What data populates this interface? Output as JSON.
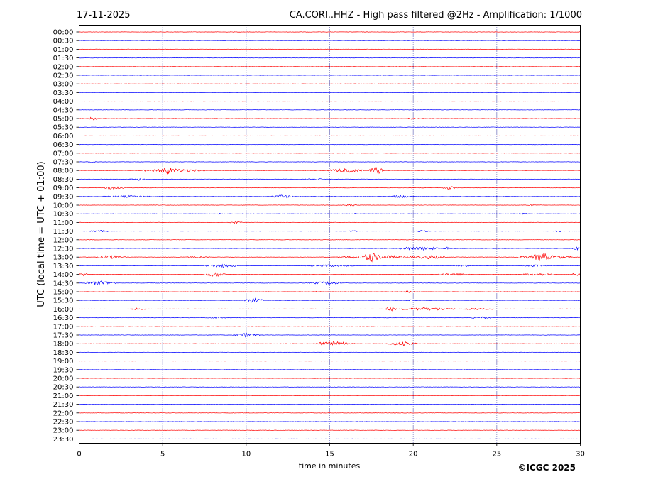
{
  "chart_data": {
    "type": "line",
    "date": "17-11-2025",
    "title": "CA.CORI..HHZ - High pass filtered @2Hz - Amplification: 1/1000",
    "xlabel": "time in minutes",
    "ylabel": "UTC (local time = UTC + 01:00)",
    "copyright": "©ICGC 2025",
    "xlim": [
      0,
      30
    ],
    "x_ticks": [
      0,
      5,
      10,
      15,
      20,
      25,
      30
    ],
    "x_tick_labels": [
      "0",
      "5",
      "10",
      "15",
      "20",
      "25",
      "30"
    ],
    "vertical_gridlines_at": [
      5,
      10,
      15,
      20,
      25
    ],
    "trace_colors": [
      "#ff0000",
      "#0000ff"
    ],
    "row_labels": [
      "00:00",
      "00:30",
      "01:00",
      "01:30",
      "02:00",
      "02:30",
      "03:00",
      "03:30",
      "04:00",
      "04:30",
      "05:00",
      "05:30",
      "06:00",
      "06:30",
      "07:00",
      "07:30",
      "08:00",
      "08:30",
      "09:00",
      "09:30",
      "10:00",
      "10:30",
      "11:00",
      "11:30",
      "12:00",
      "12:30",
      "13:00",
      "13:30",
      "14:00",
      "14:30",
      "15:00",
      "15:30",
      "16:00",
      "16:30",
      "17:00",
      "17:30",
      "18:00",
      "18:30",
      "19:00",
      "19:30",
      "20:00",
      "20:30",
      "21:00",
      "21:30",
      "22:00",
      "22:30",
      "23:00",
      "23:30"
    ],
    "events": [
      {
        "row": "05:00",
        "start": 0.6,
        "end": 1.1,
        "amplitude": 3
      },
      {
        "row": "05:00",
        "start": 19.6,
        "end": 20.3,
        "amplitude": 1.2
      },
      {
        "row": "07:30",
        "start": 0.5,
        "end": 1.0,
        "amplitude": 1
      },
      {
        "row": "08:00",
        "start": 3.8,
        "end": 7.5,
        "amplitude": 2.5
      },
      {
        "row": "08:00",
        "start": 4.9,
        "end": 5.6,
        "amplitude": 6
      },
      {
        "row": "08:00",
        "start": 14.9,
        "end": 17.0,
        "amplitude": 3
      },
      {
        "row": "08:00",
        "start": 17.4,
        "end": 18.2,
        "amplitude": 6
      },
      {
        "row": "08:30",
        "start": 3.0,
        "end": 4.0,
        "amplitude": 2
      },
      {
        "row": "08:30",
        "start": 13.5,
        "end": 14.7,
        "amplitude": 1.2
      },
      {
        "row": "09:00",
        "start": 1.5,
        "end": 2.8,
        "amplitude": 2.5
      },
      {
        "row": "09:00",
        "start": 21.8,
        "end": 22.6,
        "amplitude": 2.5
      },
      {
        "row": "09:30",
        "start": 1.4,
        "end": 4.5,
        "amplitude": 1.5
      },
      {
        "row": "09:30",
        "start": 11.5,
        "end": 12.8,
        "amplitude": 2.5
      },
      {
        "row": "09:30",
        "start": 18.5,
        "end": 19.9,
        "amplitude": 2
      },
      {
        "row": "10:00",
        "start": 16.0,
        "end": 16.6,
        "amplitude": 2
      },
      {
        "row": "10:00",
        "start": 26.7,
        "end": 27.3,
        "amplitude": 1.5
      },
      {
        "row": "10:30",
        "start": 8.0,
        "end": 9.0,
        "amplitude": 1
      },
      {
        "row": "10:30",
        "start": 16.0,
        "end": 16.8,
        "amplitude": 1
      },
      {
        "row": "10:30",
        "start": 26.3,
        "end": 26.9,
        "amplitude": 1.5
      },
      {
        "row": "11:00",
        "start": 9.0,
        "end": 9.8,
        "amplitude": 1.5
      },
      {
        "row": "11:30",
        "start": 0.6,
        "end": 2.0,
        "amplitude": 1.3
      },
      {
        "row": "11:30",
        "start": 16.1,
        "end": 16.7,
        "amplitude": 1.3
      },
      {
        "row": "11:30",
        "start": 20.1,
        "end": 21.0,
        "amplitude": 1.3
      },
      {
        "row": "11:30",
        "start": 28.3,
        "end": 29.0,
        "amplitude": 1.3
      },
      {
        "row": "12:30",
        "start": 19.2,
        "end": 21.5,
        "amplitude": 3
      },
      {
        "row": "12:30",
        "start": 21.8,
        "end": 22.3,
        "amplitude": 2
      },
      {
        "row": "12:30",
        "start": 29.5,
        "end": 30.0,
        "amplitude": 3
      },
      {
        "row": "13:00",
        "start": 1.0,
        "end": 2.8,
        "amplitude": 2.5
      },
      {
        "row": "13:00",
        "start": 6.5,
        "end": 7.8,
        "amplitude": 1.5
      },
      {
        "row": "13:00",
        "start": 15.5,
        "end": 20.0,
        "amplitude": 3
      },
      {
        "row": "13:00",
        "start": 17.0,
        "end": 18.0,
        "amplitude": 7
      },
      {
        "row": "13:00",
        "start": 19.8,
        "end": 22.0,
        "amplitude": 2.5
      },
      {
        "row": "13:00",
        "start": 26.0,
        "end": 29.5,
        "amplitude": 3
      },
      {
        "row": "13:00",
        "start": 27.2,
        "end": 28.2,
        "amplitude": 7
      },
      {
        "row": "13:30",
        "start": 7.5,
        "end": 9.5,
        "amplitude": 2.5
      },
      {
        "row": "13:30",
        "start": 13.5,
        "end": 16.5,
        "amplitude": 1.5
      },
      {
        "row": "13:30",
        "start": 22.5,
        "end": 23.5,
        "amplitude": 1.5
      },
      {
        "row": "13:30",
        "start": 26.5,
        "end": 28.0,
        "amplitude": 1.5
      },
      {
        "row": "14:00",
        "start": 0.0,
        "end": 0.5,
        "amplitude": 2
      },
      {
        "row": "14:00",
        "start": 7.5,
        "end": 8.8,
        "amplitude": 3.5
      },
      {
        "row": "14:00",
        "start": 21.5,
        "end": 23.5,
        "amplitude": 1.8
      },
      {
        "row": "14:00",
        "start": 26.5,
        "end": 28.5,
        "amplitude": 2
      },
      {
        "row": "14:00",
        "start": 29.5,
        "end": 30.0,
        "amplitude": 2.5
      },
      {
        "row": "14:30",
        "start": 0.3,
        "end": 2.2,
        "amplitude": 3.5
      },
      {
        "row": "14:30",
        "start": 13.8,
        "end": 15.8,
        "amplitude": 2.2
      },
      {
        "row": "15:00",
        "start": 14.0,
        "end": 14.5,
        "amplitude": 1.2
      },
      {
        "row": "15:00",
        "start": 19.5,
        "end": 20.1,
        "amplitude": 2
      },
      {
        "row": "15:30",
        "start": 9.8,
        "end": 11.0,
        "amplitude": 3.5
      },
      {
        "row": "15:30",
        "start": 19.5,
        "end": 20.3,
        "amplitude": 1.2
      },
      {
        "row": "16:00",
        "start": 3.0,
        "end": 4.0,
        "amplitude": 1.5
      },
      {
        "row": "16:00",
        "start": 18.3,
        "end": 19.0,
        "amplitude": 3
      },
      {
        "row": "16:00",
        "start": 19.3,
        "end": 22.5,
        "amplitude": 2.5
      },
      {
        "row": "16:00",
        "start": 23.0,
        "end": 24.8,
        "amplitude": 1.5
      },
      {
        "row": "16:30",
        "start": 7.5,
        "end": 9.0,
        "amplitude": 1.2
      },
      {
        "row": "16:30",
        "start": 23.3,
        "end": 24.8,
        "amplitude": 1.5
      },
      {
        "row": "17:30",
        "start": 9.2,
        "end": 10.8,
        "amplitude": 2.8
      },
      {
        "row": "18:00",
        "start": 14.0,
        "end": 16.5,
        "amplitude": 3
      },
      {
        "row": "18:00",
        "start": 14.3,
        "end": 14.9,
        "amplitude": 4
      },
      {
        "row": "18:00",
        "start": 18.5,
        "end": 20.2,
        "amplitude": 3
      }
    ]
  }
}
